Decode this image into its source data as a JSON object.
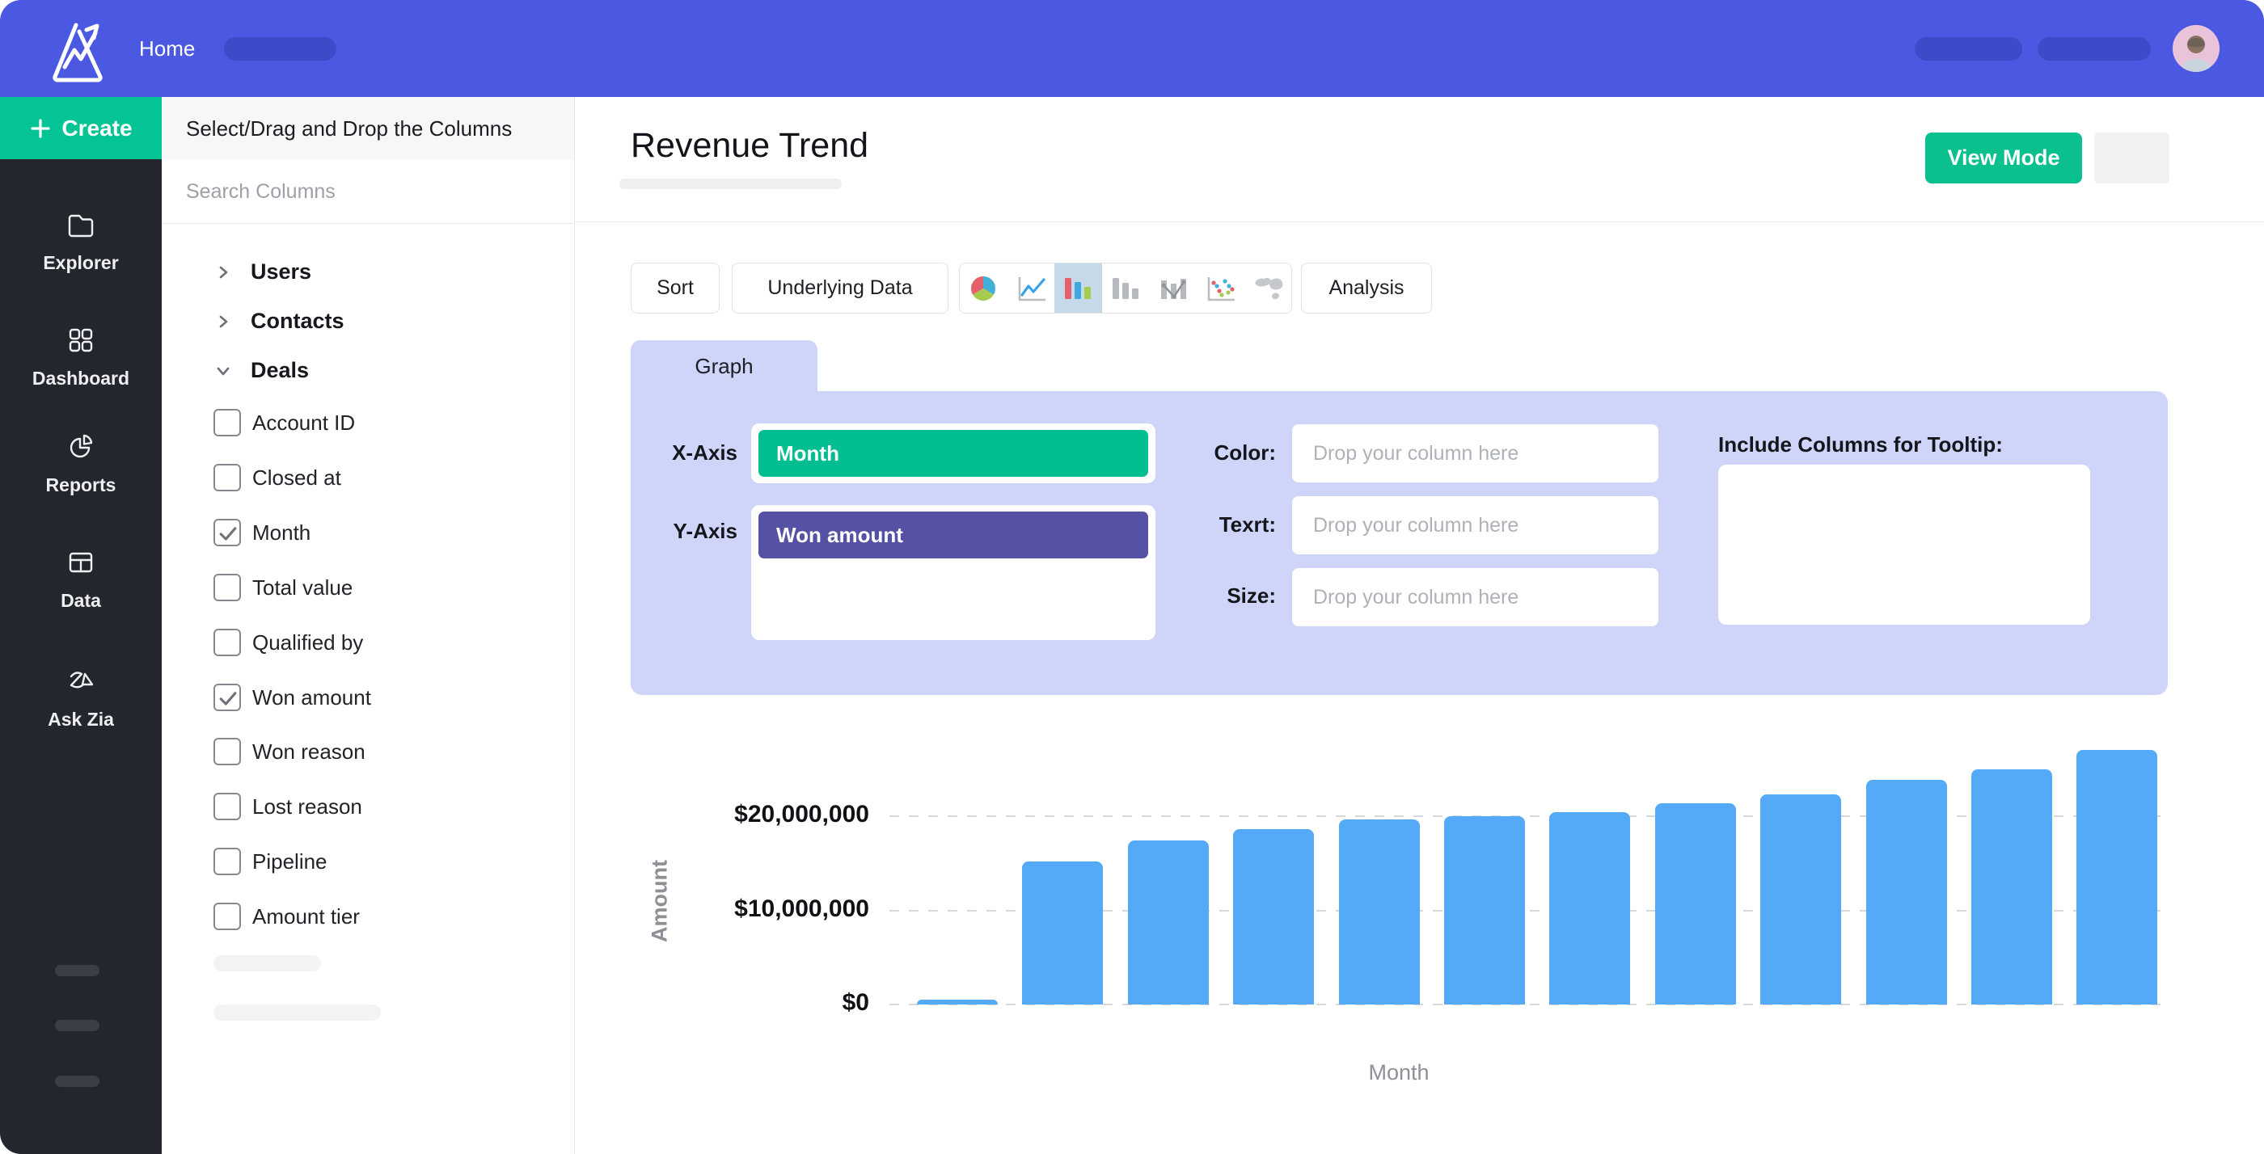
{
  "topbar": {
    "home_label": "Home"
  },
  "sidebar": {
    "create_label": "Create",
    "items": [
      {
        "label": "Explorer"
      },
      {
        "label": "Dashboard"
      },
      {
        "label": "Reports"
      },
      {
        "label": "Data"
      },
      {
        "label": "Ask Zia"
      }
    ]
  },
  "columns": {
    "header": "Select/Drag and Drop the Columns",
    "search_placeholder": "Search Columns",
    "groups": [
      {
        "label": "Users",
        "expanded": false
      },
      {
        "label": "Contacts",
        "expanded": false
      },
      {
        "label": "Deals",
        "expanded": true,
        "fields": [
          {
            "label": "Account ID",
            "checked": false
          },
          {
            "label": "Closed at",
            "checked": false
          },
          {
            "label": "Month",
            "checked": true
          },
          {
            "label": "Total value",
            "checked": false
          },
          {
            "label": "Qualified by",
            "checked": false
          },
          {
            "label": "Won amount",
            "checked": true
          },
          {
            "label": "Won reason",
            "checked": false
          },
          {
            "label": "Lost reason",
            "checked": false
          },
          {
            "label": "Pipeline",
            "checked": false
          },
          {
            "label": "Amount tier",
            "checked": false
          }
        ]
      }
    ]
  },
  "main": {
    "title": "Revenue Trend",
    "view_mode_label": "View Mode",
    "toolbar": {
      "sort_label": "Sort",
      "underlying_label": "Underlying Data",
      "analysis_label": "Analysis",
      "chart_type_icons": [
        "pie-chart-icon",
        "line-chart-icon",
        "bar-chart-icon",
        "bar-mono-chart-icon",
        "combo-chart-icon",
        "scatter-chart-icon",
        "map-chart-icon"
      ],
      "selected_chart_type": "bar-chart-icon"
    },
    "graph": {
      "tab_label": "Graph",
      "x_axis_label": "X-Axis",
      "x_axis_value": "Month",
      "y_axis_label": "Y-Axis",
      "y_axis_value": "Won amount",
      "color_label": "Color:",
      "text_label": "Texrt:",
      "size_label": "Size:",
      "drop_placeholder": "Drop your column here",
      "tooltip_label": "Include Columns for Tooltip:"
    }
  },
  "chart_data": {
    "type": "bar",
    "xlabel": "Month",
    "ylabel": "Amount",
    "values": [
      500000,
      15200000,
      17400000,
      18600000,
      19700000,
      20000000,
      20400000,
      21400000,
      22300000,
      23900000,
      25000000,
      27000000
    ],
    "gridlines": [
      {
        "value": 0,
        "label": "$0"
      },
      {
        "value": 10000000,
        "label": "$10,000,000"
      },
      {
        "value": 20000000,
        "label": "$20,000,000"
      }
    ],
    "ylim": [
      0,
      28000000
    ],
    "grid_style": "dashed",
    "legend": "none",
    "bar_color": "#55AAF7",
    "x_tick_labels": []
  },
  "colors": {
    "brand_blue": "#4A58E2",
    "green": "#04C495",
    "chip_green": "#00BE90",
    "chip_purple": "#5551A5",
    "bar_blue": "#55AAF7",
    "lavender": "#CFD5F9",
    "sidebar_dark": "#24262E",
    "selected_icon_bg": "#C5D9E9"
  }
}
